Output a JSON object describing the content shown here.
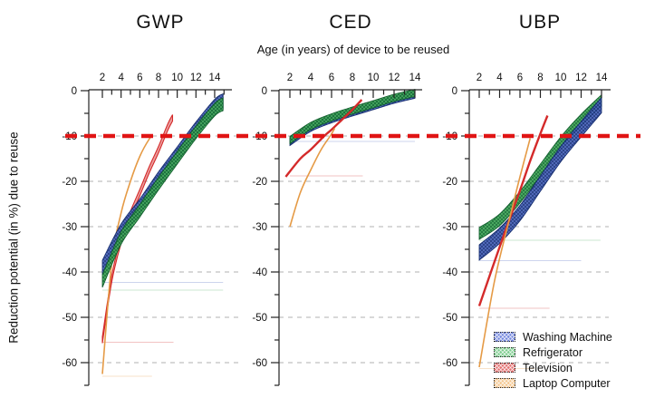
{
  "axes": {
    "x_label": "Age (in years) of device to be reused",
    "y_label": "Reduction potential (in %) due to reuse",
    "x_ticks": [
      2,
      4,
      6,
      8,
      10,
      12,
      14
    ],
    "x_minor_step": 1,
    "x_tick_range": [
      2,
      15
    ],
    "y_ticks": [
      0,
      -10,
      -20,
      -30,
      -40,
      -50,
      -60
    ],
    "y_minor_step": 5,
    "y_range": [
      0,
      -65
    ],
    "y_gridlines": [
      -10,
      -20,
      -30,
      -40,
      -50,
      -60
    ],
    "grid_style": "dashed"
  },
  "threshold": {
    "value": -10,
    "color": "#e01414",
    "style": "dashed-bold"
  },
  "palette": {
    "band_blue": {
      "base": "#4e69c0",
      "hatch": "#142b70",
      "edge": "#122a6b"
    },
    "band_green": {
      "base": "#49ad5e",
      "hatch": "#0d632e",
      "edge": "#0d5a2a"
    },
    "tv_red": "#d42a2a",
    "laptop_orange": "#e59a45"
  },
  "legend": {
    "items": [
      {
        "label": "Washing Machine",
        "swatch_color": "#7386de"
      },
      {
        "label": "Refrigerator",
        "swatch_color": "#7ccc8c"
      },
      {
        "label": "Television",
        "swatch_color": "#e27070"
      },
      {
        "label": "Laptop Computer",
        "swatch_color": "#f4c58c"
      }
    ]
  },
  "chart_data": [
    {
      "title": "GWP",
      "type": "band",
      "lines_on_top": false,
      "series": [
        {
          "name": "Television",
          "kind": "band",
          "pattern": null,
          "color": "#d42a2a",
          "stroke_width": 1.1,
          "half_width": 0.7,
          "points": [
            [
              2,
              -55
            ],
            [
              3,
              -41.5
            ],
            [
              4,
              -33
            ],
            [
              5,
              -27.3
            ],
            [
              6,
              -22.5
            ],
            [
              7,
              -17.5
            ],
            [
              8,
              -13
            ],
            [
              9,
              -8
            ],
            [
              9.5,
              -6
            ]
          ]
        },
        {
          "name": "Laptop Computer",
          "kind": "line",
          "color": "#e59a45",
          "stroke_width": 1.6,
          "points": [
            [
              2,
              -62.5
            ],
            [
              3,
              -38
            ],
            [
              4,
              -27
            ],
            [
              5,
              -20
            ],
            [
              6,
              -14.5
            ],
            [
              7,
              -10.7
            ],
            [
              7.4,
              -10
            ]
          ]
        },
        {
          "name": "Washing Machine",
          "kind": "band",
          "pattern": "band_blue",
          "half_width": 1.6,
          "points": [
            [
              2,
              -39
            ],
            [
              4,
              -31
            ],
            [
              6,
              -25.5
            ],
            [
              8,
              -19.5
            ],
            [
              10,
              -14
            ],
            [
              12,
              -8.5
            ],
            [
              14,
              -3.5
            ],
            [
              14.9,
              -2.3
            ]
          ]
        },
        {
          "name": "Refrigerator",
          "kind": "band",
          "pattern": "band_green",
          "half_width": 1.4,
          "points": [
            [
              2,
              -42
            ],
            [
              4,
              -32.5
            ],
            [
              6,
              -26.5
            ],
            [
              8,
              -20.5
            ],
            [
              10,
              -14.8
            ],
            [
              12,
              -9.2
            ],
            [
              14,
              -4.2
            ],
            [
              14.9,
              -3
            ]
          ]
        }
      ],
      "baselines": [
        {
          "value": -42.3,
          "to_age": 14.9,
          "color": "#4e69c0"
        },
        {
          "value": -44.0,
          "to_age": 14.9,
          "color": "#49ad5e"
        },
        {
          "value": -55.5,
          "to_age": 9.6,
          "color": "#d42a2a"
        },
        {
          "value": -63.0,
          "to_age": 7.3,
          "color": "#e59a45"
        }
      ]
    },
    {
      "title": "CED",
      "type": "band",
      "lines_on_top": true,
      "series": [
        {
          "name": "Washing Machine",
          "kind": "band",
          "pattern": "band_blue",
          "half_width": 0.8,
          "points": [
            [
              2,
              -11.3
            ],
            [
              4,
              -8.2
            ],
            [
              6,
              -6.3
            ],
            [
              8,
              -4.8
            ],
            [
              10,
              -3.4
            ],
            [
              12,
              -2
            ],
            [
              14,
              -0.9
            ]
          ]
        },
        {
          "name": "Refrigerator",
          "kind": "band",
          "pattern": "band_green",
          "half_width": 0.8,
          "points": [
            [
              2,
              -10.9
            ],
            [
              4,
              -7.8
            ],
            [
              6,
              -5.9
            ],
            [
              8,
              -4.4
            ],
            [
              10,
              -3
            ],
            [
              12,
              -1.6
            ],
            [
              14,
              -0.5
            ]
          ]
        },
        {
          "name": "Television",
          "kind": "line",
          "color": "#d42a2a",
          "stroke_width": 2.4,
          "points": [
            [
              1.6,
              -19
            ],
            [
              3,
              -15
            ],
            [
              4,
              -13
            ],
            [
              5.3,
              -10
            ],
            [
              6,
              -8.6
            ],
            [
              7,
              -6.4
            ],
            [
              8,
              -4.2
            ],
            [
              8.9,
              -2
            ]
          ]
        },
        {
          "name": "Laptop Computer",
          "kind": "line",
          "color": "#e59a45",
          "stroke_width": 1.6,
          "points": [
            [
              2,
              -30
            ],
            [
              3,
              -22.5
            ],
            [
              4,
              -17.5
            ],
            [
              5,
              -13
            ],
            [
              5.9,
              -9.9
            ],
            [
              6.3,
              -8.3
            ]
          ]
        }
      ],
      "baselines": [
        {
          "value": -11.2,
          "to_age": 14,
          "color": "#4e69c0"
        },
        {
          "value": -18.8,
          "to_age": 9,
          "color": "#d42a2a"
        }
      ]
    },
    {
      "title": "UBP",
      "type": "band",
      "lines_on_top": true,
      "series": [
        {
          "name": "Refrigerator",
          "kind": "band",
          "pattern": "band_green",
          "half_width": 1.3,
          "points": [
            [
              2,
              -31.5
            ],
            [
              4,
              -28.5
            ],
            [
              6,
              -23.5
            ],
            [
              8,
              -17.5
            ],
            [
              10,
              -11.5
            ],
            [
              12,
              -6.5
            ],
            [
              14,
              -2.2
            ]
          ]
        },
        {
          "name": "Washing Machine",
          "kind": "band",
          "pattern": "band_blue",
          "half_width": 1.7,
          "points": [
            [
              2,
              -35.7
            ],
            [
              4,
              -32
            ],
            [
              6,
              -27
            ],
            [
              8,
              -20.5
            ],
            [
              10,
              -14
            ],
            [
              12,
              -8.5
            ],
            [
              14,
              -3.2
            ]
          ]
        },
        {
          "name": "Television",
          "kind": "line",
          "color": "#d42a2a",
          "stroke_width": 2.4,
          "points": [
            [
              2,
              -47.5
            ],
            [
              4,
              -34.5
            ],
            [
              6,
              -22
            ],
            [
              7,
              -15.5
            ],
            [
              8,
              -9.5
            ],
            [
              8.7,
              -5.5
            ]
          ]
        },
        {
          "name": "Laptop Computer",
          "kind": "line",
          "color": "#e59a45",
          "stroke_width": 1.6,
          "points": [
            [
              2,
              -61
            ],
            [
              3.5,
              -42
            ],
            [
              5,
              -28
            ],
            [
              6,
              -19
            ],
            [
              7,
              -10.5
            ]
          ]
        }
      ],
      "baselines": [
        {
          "value": -33.0,
          "to_age": 13.9,
          "color": "#49ad5e"
        },
        {
          "value": -37.5,
          "to_age": 12,
          "color": "#4e69c0"
        },
        {
          "value": -48.0,
          "to_age": 8.9,
          "color": "#d42a2a"
        },
        {
          "value": -61.3,
          "to_age": 7.4,
          "color": "#e59a45"
        }
      ]
    }
  ]
}
